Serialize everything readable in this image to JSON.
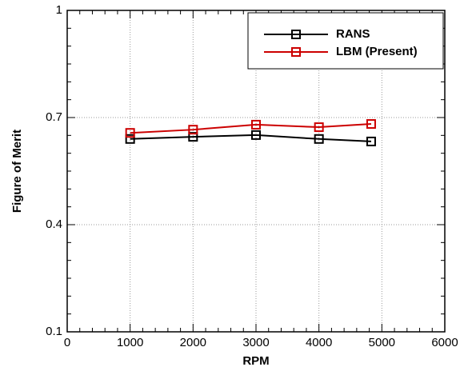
{
  "chart_data": {
    "type": "line",
    "x_label": "RPM",
    "y_label": "Figure of Merit",
    "x": [
      1000,
      2000,
      3000,
      4000,
      4830
    ],
    "series": [
      {
        "name": "RANS",
        "color": "#000000",
        "values": [
          0.64,
          0.646,
          0.651,
          0.64,
          0.633
        ]
      },
      {
        "name": "LBM (Present)",
        "color": "#cc0000",
        "values": [
          0.657,
          0.666,
          0.68,
          0.673,
          0.682
        ]
      }
    ],
    "xlim": [
      0,
      6000
    ],
    "xticks": [
      0,
      1000,
      2000,
      3000,
      4000,
      5000,
      6000
    ],
    "ylim": [
      0.1,
      1
    ],
    "yticks": [
      0.1,
      0.4,
      0.7,
      1
    ],
    "grid": true,
    "legend": "upper right",
    "marker": "open-square"
  }
}
